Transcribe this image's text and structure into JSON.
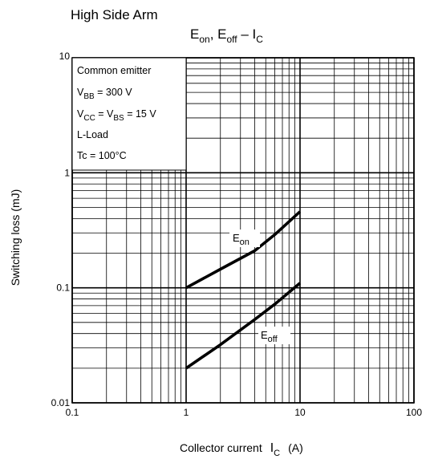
{
  "header": {
    "title": "High Side Arm"
  },
  "chart_data": {
    "type": "line",
    "title": "E_on, E_off – I_C",
    "title_parts": {
      "e1": "E",
      "e1_sub": "on",
      "sep": ", ",
      "e2": "E",
      "e2_sub": "off",
      "dash": " – ",
      "i": "I",
      "i_sub": "C"
    },
    "xlabel": "Collector current",
    "xlabel_symbol": "I",
    "xlabel_symbol_sub": "C",
    "xlabel_unit": "(A)",
    "ylabel": "Switching loss    (mJ)",
    "x_scale": "log",
    "y_scale": "log",
    "xlim": [
      0.1,
      100
    ],
    "ylim": [
      0.01,
      10
    ],
    "x_ticks": [
      0.1,
      1,
      10,
      100
    ],
    "x_tick_labels": [
      "0.1",
      "1",
      "10",
      "100"
    ],
    "y_ticks": [
      0.01,
      0.1,
      1,
      10
    ],
    "y_tick_labels": [
      "0.01",
      "0.1",
      "1",
      "10"
    ],
    "grid": true,
    "conditions": [
      {
        "text": "Common emitter"
      },
      {
        "pre": "V",
        "sub": "BB",
        "post": " = 300 V"
      },
      {
        "pre": "V",
        "sub": "CC",
        "mid": " = V",
        "sub2": "BS",
        "post": " = 15 V"
      },
      {
        "text": "L-Load"
      },
      {
        "text": "Tc = 100°C"
      }
    ],
    "series": [
      {
        "name": "E_on",
        "label_base": "E",
        "label_sub": "on",
        "x": [
          1,
          2,
          4,
          6,
          10
        ],
        "y": [
          0.1,
          0.145,
          0.21,
          0.29,
          0.46
        ]
      },
      {
        "name": "E_off",
        "label_base": "E",
        "label_sub": "off",
        "x": [
          1,
          2,
          4,
          6,
          10
        ],
        "y": [
          0.02,
          0.032,
          0.053,
          0.072,
          0.11
        ]
      }
    ]
  }
}
